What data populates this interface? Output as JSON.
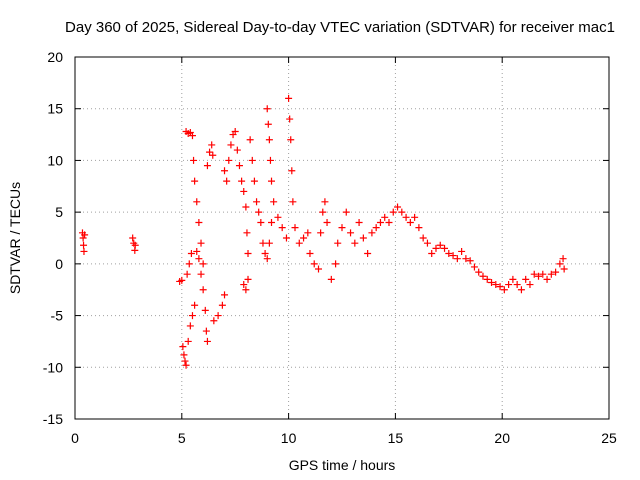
{
  "chart_data": {
    "type": "scatter",
    "title": "Day 360 of 2025, Sidereal Day-to-day VTEC variation (SDTVAR) for receiver mac1",
    "xlabel": "GPS time / hours",
    "ylabel": "SDTVAR / TECUs",
    "xlim": [
      0,
      25
    ],
    "ylim": [
      -15,
      20
    ],
    "xticks": [
      "0",
      "5",
      "10",
      "15",
      "20",
      "25"
    ],
    "yticks": [
      "-15",
      "-10",
      "-5",
      "0",
      "5",
      "10",
      "15",
      "20"
    ],
    "grid": true,
    "marker": "plus",
    "series_color": "#ff0000",
    "series": [
      {
        "name": "SDTVAR",
        "points": [
          [
            0.35,
            3.0
          ],
          [
            0.38,
            2.5
          ],
          [
            0.4,
            1.8
          ],
          [
            0.42,
            1.2
          ],
          [
            0.45,
            2.8
          ],
          [
            2.7,
            2.5
          ],
          [
            2.75,
            2.0
          ],
          [
            2.8,
            1.3
          ],
          [
            2.82,
            1.8
          ],
          [
            4.9,
            -1.7
          ],
          [
            5.0,
            -1.6
          ],
          [
            5.05,
            -8.0
          ],
          [
            5.1,
            -8.8
          ],
          [
            5.15,
            -9.4
          ],
          [
            5.2,
            -9.8
          ],
          [
            5.3,
            -7.5
          ],
          [
            5.4,
            -6.0
          ],
          [
            5.5,
            -5.0
          ],
          [
            5.6,
            -4.0
          ],
          [
            5.25,
            -1.0
          ],
          [
            5.35,
            0.0
          ],
          [
            5.45,
            1.0
          ],
          [
            5.2,
            12.8
          ],
          [
            5.3,
            12.6
          ],
          [
            5.4,
            12.7
          ],
          [
            5.5,
            12.4
          ],
          [
            5.55,
            10.0
          ],
          [
            5.6,
            8.0
          ],
          [
            5.7,
            6.0
          ],
          [
            5.8,
            4.0
          ],
          [
            5.9,
            2.0
          ],
          [
            6.0,
            0.0
          ],
          [
            5.7,
            1.2
          ],
          [
            5.8,
            0.5
          ],
          [
            5.9,
            -1.0
          ],
          [
            6.0,
            -2.5
          ],
          [
            6.1,
            -4.5
          ],
          [
            6.15,
            -6.5
          ],
          [
            6.2,
            -7.5
          ],
          [
            6.2,
            9.5
          ],
          [
            6.3,
            10.8
          ],
          [
            6.4,
            11.5
          ],
          [
            6.45,
            10.5
          ],
          [
            6.5,
            -5.5
          ],
          [
            6.7,
            -5.0
          ],
          [
            6.9,
            -4.0
          ],
          [
            7.0,
            -3.0
          ],
          [
            7.0,
            9.0
          ],
          [
            7.1,
            8.0
          ],
          [
            7.2,
            10.0
          ],
          [
            7.3,
            11.5
          ],
          [
            7.4,
            12.5
          ],
          [
            7.5,
            12.8
          ],
          [
            7.6,
            11.0
          ],
          [
            7.7,
            9.5
          ],
          [
            7.8,
            8.0
          ],
          [
            7.9,
            7.0
          ],
          [
            8.0,
            5.5
          ],
          [
            8.05,
            3.0
          ],
          [
            8.1,
            1.0
          ],
          [
            7.9,
            -2.0
          ],
          [
            8.0,
            -2.5
          ],
          [
            8.1,
            -1.5
          ],
          [
            8.2,
            12.0
          ],
          [
            8.3,
            10.0
          ],
          [
            8.4,
            8.0
          ],
          [
            8.5,
            6.0
          ],
          [
            8.6,
            5.0
          ],
          [
            8.7,
            4.0
          ],
          [
            8.8,
            2.0
          ],
          [
            8.9,
            1.0
          ],
          [
            9.0,
            0.5
          ],
          [
            9.1,
            2.0
          ],
          [
            9.2,
            4.0
          ],
          [
            9.0,
            15.0
          ],
          [
            9.05,
            13.5
          ],
          [
            9.1,
            12.0
          ],
          [
            9.15,
            10.0
          ],
          [
            9.2,
            8.0
          ],
          [
            9.3,
            6.0
          ],
          [
            9.5,
            4.5
          ],
          [
            9.7,
            3.5
          ],
          [
            9.9,
            2.5
          ],
          [
            10.0,
            16.0
          ],
          [
            10.05,
            14.0
          ],
          [
            10.1,
            12.0
          ],
          [
            10.15,
            9.0
          ],
          [
            10.2,
            6.0
          ],
          [
            10.3,
            3.5
          ],
          [
            10.5,
            2.0
          ],
          [
            10.7,
            2.5
          ],
          [
            10.9,
            3.0
          ],
          [
            11.0,
            1.0
          ],
          [
            11.2,
            0.0
          ],
          [
            11.4,
            -0.5
          ],
          [
            11.5,
            3.0
          ],
          [
            11.6,
            5.0
          ],
          [
            11.7,
            6.0
          ],
          [
            11.8,
            4.0
          ],
          [
            12.0,
            -1.5
          ],
          [
            12.2,
            0.0
          ],
          [
            12.3,
            2.0
          ],
          [
            12.5,
            3.5
          ],
          [
            12.7,
            5.0
          ],
          [
            12.9,
            3.0
          ],
          [
            13.1,
            2.0
          ],
          [
            13.3,
            4.0
          ],
          [
            13.5,
            2.5
          ],
          [
            13.7,
            1.0
          ],
          [
            13.9,
            3.0
          ],
          [
            14.1,
            3.5
          ],
          [
            14.3,
            4.0
          ],
          [
            14.5,
            4.5
          ],
          [
            14.7,
            4.0
          ],
          [
            14.9,
            5.0
          ],
          [
            15.1,
            5.5
          ],
          [
            15.3,
            5.0
          ],
          [
            15.5,
            4.5
          ],
          [
            15.7,
            4.0
          ],
          [
            15.9,
            4.5
          ],
          [
            16.1,
            3.5
          ],
          [
            16.3,
            2.5
          ],
          [
            16.5,
            2.0
          ],
          [
            16.7,
            1.0
          ],
          [
            16.9,
            1.5
          ],
          [
            17.1,
            1.8
          ],
          [
            17.3,
            1.5
          ],
          [
            17.5,
            1.0
          ],
          [
            17.7,
            0.8
          ],
          [
            17.9,
            0.5
          ],
          [
            18.1,
            1.2
          ],
          [
            18.3,
            0.5
          ],
          [
            18.5,
            0.3
          ],
          [
            18.7,
            -0.3
          ],
          [
            18.9,
            -0.8
          ],
          [
            19.1,
            -1.2
          ],
          [
            19.3,
            -1.5
          ],
          [
            19.5,
            -1.8
          ],
          [
            19.7,
            -2.0
          ],
          [
            19.9,
            -2.2
          ],
          [
            20.1,
            -2.5
          ],
          [
            20.3,
            -2.0
          ],
          [
            20.5,
            -1.5
          ],
          [
            20.7,
            -2.0
          ],
          [
            20.9,
            -2.5
          ],
          [
            21.1,
            -1.5
          ],
          [
            21.3,
            -2.0
          ],
          [
            21.5,
            -1.0
          ],
          [
            21.7,
            -1.2
          ],
          [
            21.9,
            -1.0
          ],
          [
            22.1,
            -1.5
          ],
          [
            22.3,
            -1.0
          ],
          [
            22.5,
            -0.8
          ],
          [
            22.7,
            0.0
          ],
          [
            22.85,
            0.5
          ],
          [
            22.9,
            -0.5
          ]
        ]
      }
    ]
  }
}
